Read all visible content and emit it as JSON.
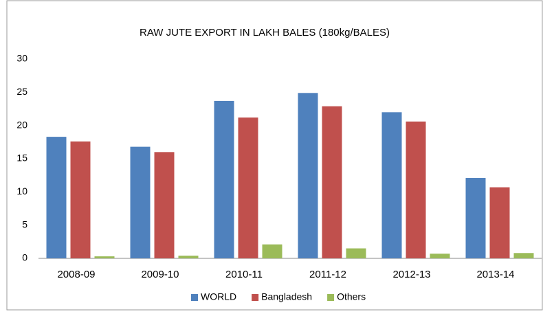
{
  "chart_data": {
    "type": "bar",
    "title": "RAW JUTE EXPORT IN LAKH BALES (180kg/BALES)",
    "categories": [
      "2008-09",
      "2009-10",
      "2010-11",
      "2011-12",
      "2012-13",
      "2013-14"
    ],
    "series": [
      {
        "name": "WORLD",
        "color": "#4f81bd",
        "values": [
          18.3,
          16.8,
          23.7,
          24.9,
          22.0,
          12.1
        ]
      },
      {
        "name": "Bangladesh",
        "color": "#c0504d",
        "values": [
          17.6,
          16.0,
          21.2,
          22.9,
          20.6,
          10.7
        ]
      },
      {
        "name": "Others",
        "color": "#9bbb59",
        "values": [
          0.3,
          0.4,
          2.1,
          1.5,
          0.7,
          0.8
        ]
      }
    ],
    "ylim": [
      0,
      30
    ],
    "yticks": [
      0,
      5,
      10,
      15,
      20,
      25,
      30
    ],
    "grid": false,
    "legend": "bottom"
  }
}
